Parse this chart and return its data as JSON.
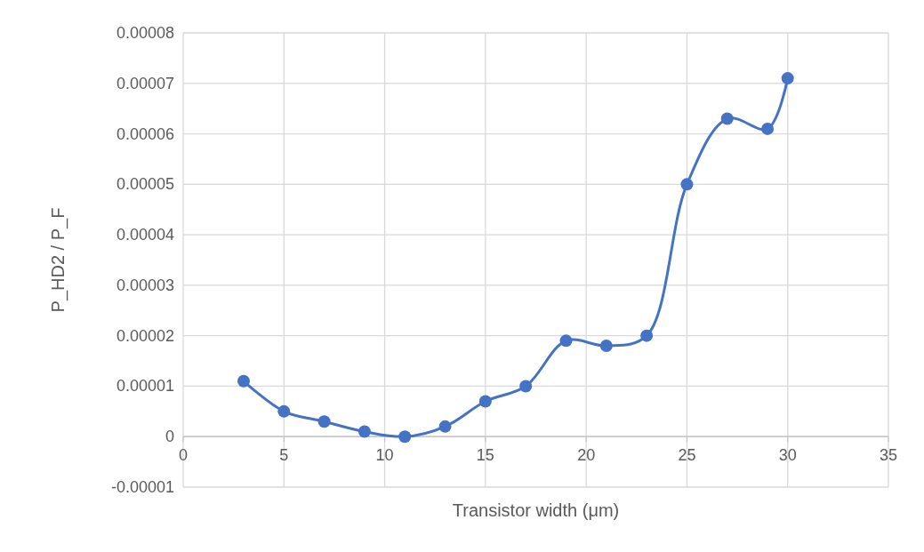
{
  "chart_data": {
    "type": "line",
    "xlabel": "Transistor width (μm)",
    "ylabel": "P_HD2 / P_F",
    "x": [
      3,
      5,
      7,
      9,
      11,
      13,
      15,
      17,
      19,
      21,
      23,
      25,
      27,
      29,
      30
    ],
    "series": [
      {
        "color": "#4472c4",
        "values": [
          1.1e-05,
          5e-06,
          3e-06,
          1e-06,
          0,
          2e-06,
          7e-06,
          1e-05,
          1.9e-05,
          1.8e-05,
          2e-05,
          5e-05,
          6.3e-05,
          6.1e-05,
          7.1e-05
        ]
      }
    ],
    "xlim": [
      0,
      35
    ],
    "xticks": [
      0,
      5,
      10,
      15,
      20,
      25,
      30,
      35
    ],
    "ylim": [
      -1e-05,
      8e-05
    ],
    "yticks": [
      {
        "value": -1e-05,
        "label": "-0.00001"
      },
      0,
      {
        "value": 1e-05,
        "label": "0.00001"
      },
      {
        "value": 2e-05,
        "label": "0.00002"
      },
      {
        "value": 3e-05,
        "label": "0.00003"
      },
      {
        "value": 4e-05,
        "label": "0.00004"
      },
      {
        "value": 5e-05,
        "label": "0.00005"
      },
      {
        "value": 6e-05,
        "label": "0.00006"
      },
      {
        "value": 7e-05,
        "label": "0.00007"
      },
      {
        "value": 8e-05,
        "label": "0.00008"
      }
    ],
    "grid": true,
    "marker": "circle",
    "line_style": "solid"
  }
}
